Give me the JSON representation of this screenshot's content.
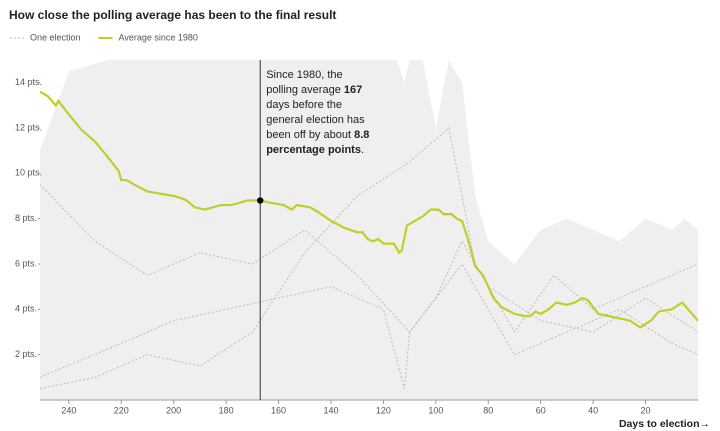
{
  "chart_data": {
    "type": "line",
    "title": "How close the polling average has been to the final result",
    "x_label": "Days to election→",
    "xlim": [
      251,
      0
    ],
    "ylim": [
      0,
      15
    ],
    "xticks": [
      240,
      220,
      200,
      180,
      160,
      140,
      120,
      100,
      80,
      60,
      40,
      20
    ],
    "yticks": [
      {
        "value": 2,
        "label": "2 pts."
      },
      {
        "value": 4,
        "label": "4 pts."
      },
      {
        "value": 6,
        "label": "6 pts."
      },
      {
        "value": 8,
        "label": "8 pts."
      },
      {
        "value": 10,
        "label": "10 pts."
      },
      {
        "value": 12,
        "label": "12 pts."
      },
      {
        "value": 14,
        "label": "14 pts."
      }
    ],
    "grid": false,
    "range": {
      "color": "#efefef",
      "x": [
        251,
        240,
        225,
        200,
        180,
        150,
        130,
        115,
        112,
        110,
        105,
        100,
        95,
        90,
        88,
        85,
        80,
        70,
        60,
        50,
        40,
        30,
        20,
        10,
        5,
        0
      ],
      "high": [
        11,
        14.5,
        15,
        15,
        15,
        15,
        15,
        15,
        14,
        15,
        15,
        12,
        15,
        14,
        12,
        9,
        7,
        6,
        7.5,
        8,
        7.5,
        7,
        8,
        7.5,
        8,
        7.5
      ]
    },
    "series": [
      {
        "name": "One election",
        "color": "#bbbbbb",
        "dashed": true,
        "x": [
          251,
          230,
          210,
          190,
          170,
          150,
          130,
          110,
          90,
          70,
          50,
          30,
          10,
          0
        ],
        "values": [
          9.5,
          7.0,
          5.5,
          6.5,
          6.0,
          7.5,
          5.5,
          3.0,
          6.0,
          2.0,
          3.0,
          4.0,
          2.5,
          2.0
        ]
      },
      {
        "name": "One election",
        "color": "#bbbbbb",
        "dashed": true,
        "x": [
          251,
          220,
          200,
          180,
          160,
          140,
          120,
          112,
          110,
          100,
          90,
          80,
          60,
          40,
          20,
          0
        ],
        "values": [
          1.0,
          2.5,
          3.5,
          4.0,
          4.5,
          5.0,
          4.0,
          0.5,
          3.0,
          4.5,
          7.0,
          5.0,
          3.5,
          3.0,
          4.5,
          3.0
        ]
      },
      {
        "name": "One election",
        "color": "#bbbbbb",
        "dashed": true,
        "x": [
          251,
          230,
          210,
          190,
          170,
          150,
          130,
          110,
          95,
          85,
          70,
          55,
          40,
          20,
          0
        ],
        "values": [
          0.5,
          1.0,
          2.0,
          1.5,
          3.0,
          6.5,
          9.0,
          10.5,
          12.0,
          6.0,
          3.0,
          5.5,
          4.0,
          5.0,
          6.0
        ]
      },
      {
        "name": "Average since 1980",
        "color": "#c2cc2a",
        "dashed": false,
        "x": [
          251,
          248,
          245,
          244,
          240,
          235,
          230,
          225,
          221,
          220,
          218,
          215,
          210,
          205,
          200,
          197,
          195,
          192,
          188,
          185,
          182,
          178,
          175,
          172,
          167,
          163,
          158,
          155,
          153,
          148,
          145,
          140,
          135,
          130,
          128,
          126,
          124,
          122,
          120,
          116,
          114,
          113,
          111,
          108,
          105,
          102,
          99,
          97,
          94,
          92,
          90,
          88,
          85,
          82,
          78,
          75,
          70,
          66,
          64,
          62,
          60,
          57,
          54,
          50,
          47,
          44,
          42,
          38,
          34,
          30,
          26,
          22,
          18,
          15,
          10,
          6,
          3,
          0
        ],
        "values": [
          13.6,
          13.4,
          13.0,
          13.2,
          12.6,
          11.9,
          11.4,
          10.7,
          10.1,
          9.7,
          9.7,
          9.5,
          9.2,
          9.1,
          9.0,
          8.9,
          8.8,
          8.5,
          8.4,
          8.5,
          8.6,
          8.6,
          8.7,
          8.8,
          8.8,
          8.7,
          8.6,
          8.4,
          8.6,
          8.5,
          8.3,
          7.9,
          7.6,
          7.4,
          7.4,
          7.1,
          7.0,
          7.1,
          6.9,
          6.9,
          6.5,
          6.6,
          7.7,
          7.9,
          8.1,
          8.4,
          8.4,
          8.2,
          8.2,
          8.0,
          7.9,
          7.2,
          5.9,
          5.5,
          4.5,
          4.1,
          3.8,
          3.7,
          3.7,
          3.9,
          3.8,
          4.0,
          4.3,
          4.2,
          4.3,
          4.5,
          4.4,
          3.8,
          3.7,
          3.6,
          3.5,
          3.2,
          3.5,
          3.9,
          4.0,
          4.3,
          3.9,
          3.5
        ]
      }
    ],
    "highlight": {
      "x": 167,
      "y": 8.8
    },
    "annotation": [
      {
        "text": "Since 1980, the polling average ",
        "bold": false
      },
      {
        "text": "167",
        "bold": true
      },
      {
        "text": " days before the general election has been off by about ",
        "bold": false
      },
      {
        "text": "8.8 percentage points",
        "bold": true
      },
      {
        "text": ".",
        "bold": false
      }
    ]
  }
}
